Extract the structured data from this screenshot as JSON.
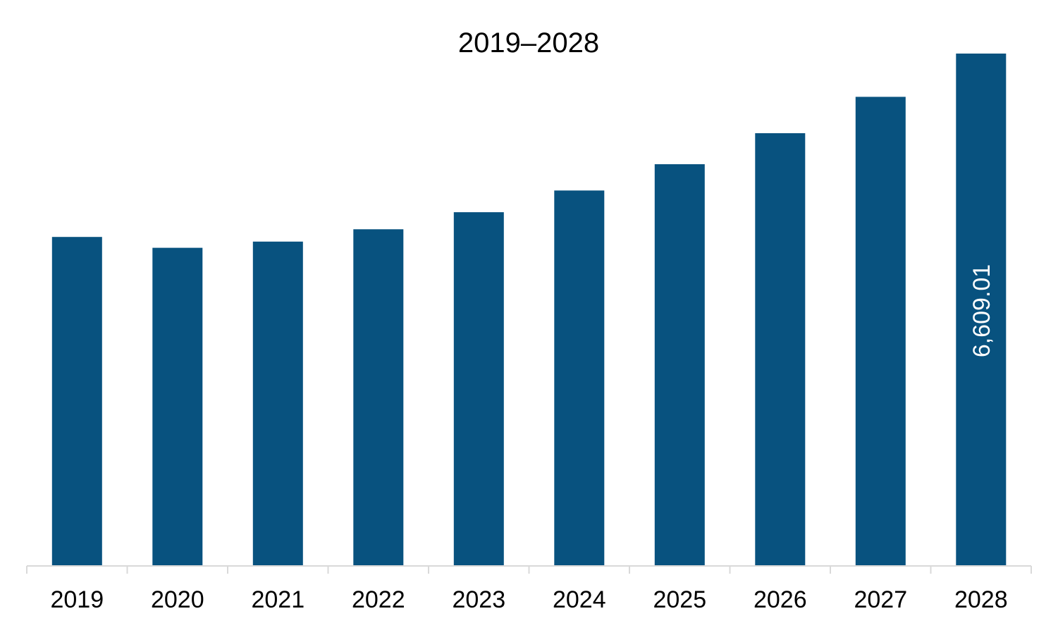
{
  "chart_data": {
    "type": "bar",
    "title": "2019–2028",
    "xlabel": "",
    "ylabel": "",
    "categories": [
      "2019",
      "2020",
      "2021",
      "2022",
      "2023",
      "2024",
      "2025",
      "2026",
      "2027",
      "2028"
    ],
    "values": [
      4240,
      4100,
      4180,
      4340,
      4560,
      4840,
      5180,
      5580,
      6050,
      6609.01
    ],
    "data_labels": [
      {
        "category": "2028",
        "text": "6,609.01"
      }
    ],
    "ylim": [
      0,
      6609.01
    ],
    "grid": false,
    "legend": "none",
    "bar_color": "#08527F",
    "axis_color": "#D9D9D9"
  }
}
